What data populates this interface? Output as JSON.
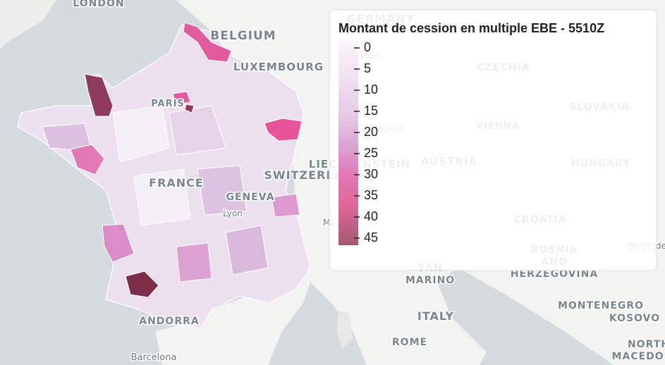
{
  "map": {
    "places": [
      "LONDON",
      "BELGIUM",
      "LUXEMBOURG",
      "PARIS",
      "FRANCE",
      "GENEVA",
      "Lyon",
      "SWITZERLAND",
      "GERMANY",
      "Frankfurt",
      "Munich",
      "LIECHTENSTEIN",
      "CZECHIA",
      "VIENNA",
      "AUSTRIA",
      "SLOVAKIA",
      "HUNGARY",
      "CROATIA",
      "BOSNIA",
      "AND",
      "HERZEGOVINA",
      "Milan",
      "Belgrade",
      "SAN",
      "MARINO",
      "ITALY",
      "ROME",
      "MONTENEGRO",
      "KOSOVO",
      "NORTH",
      "MACEDONIA",
      "ANDORRA",
      "Barcelona"
    ]
  },
  "legend": {
    "title": "Montant de cession en multiple EBE - 5510Z",
    "ticks": [
      0,
      5,
      10,
      15,
      20,
      25,
      30,
      35,
      40,
      45
    ]
  }
}
